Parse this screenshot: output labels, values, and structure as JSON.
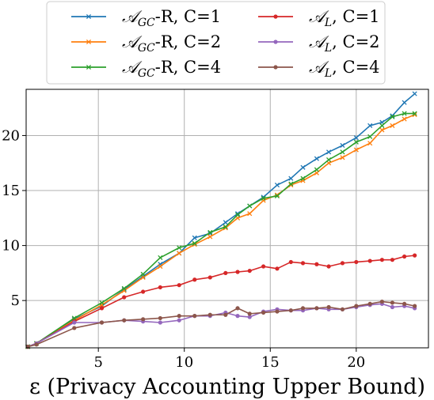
{
  "chart_data": {
    "type": "line",
    "title": "",
    "xlabel": "ε (Privacy Accounting Upper Bound)",
    "ylabel": "",
    "xlim": [
      0.8,
      24.2
    ],
    "ylim": [
      0.7,
      24.2
    ],
    "xticks": [
      5,
      10,
      15,
      20
    ],
    "yticks": [
      5,
      10,
      15,
      20
    ],
    "grid": true,
    "legend": {
      "placement": "top-outside",
      "columns": 2
    },
    "series": [
      {
        "name": "A_GC-R, C=1",
        "legend_main": "𝒜",
        "legend_sub": "GC",
        "legend_rest": "-R, C=1",
        "color": "#1f77b4",
        "marker": "x",
        "x": [
          0.9,
          1.4,
          3.6,
          5.2,
          6.5,
          7.6,
          8.6,
          9.7,
          10.6,
          11.5,
          12.4,
          13.1,
          13.8,
          14.6,
          15.4,
          16.2,
          16.9,
          17.7,
          18.4,
          19.2,
          20.0,
          20.8,
          21.5,
          22.1,
          22.8,
          23.4
        ],
        "y": [
          0.8,
          1.1,
          3.3,
          4.5,
          6.0,
          7.2,
          8.3,
          9.3,
          10.7,
          11.1,
          12.1,
          12.9,
          13.6,
          14.4,
          15.5,
          16.1,
          17.1,
          17.9,
          18.5,
          19.1,
          19.8,
          20.9,
          21.2,
          21.8,
          23.0,
          23.8
        ]
      },
      {
        "name": "A_GC-R, C=2",
        "legend_main": "𝒜",
        "legend_sub": "GC",
        "legend_rest": "-R, C=2",
        "color": "#ff7f0e",
        "marker": "x",
        "x": [
          0.9,
          1.4,
          3.6,
          5.2,
          6.5,
          7.6,
          8.6,
          9.7,
          10.6,
          11.5,
          12.4,
          13.1,
          13.8,
          14.6,
          15.4,
          16.2,
          16.9,
          17.7,
          18.4,
          19.2,
          20.0,
          20.8,
          21.5,
          22.1,
          22.8,
          23.4
        ],
        "y": [
          0.8,
          1.1,
          3.2,
          4.6,
          5.9,
          7.1,
          8.1,
          9.3,
          10.1,
          10.8,
          11.6,
          12.5,
          12.9,
          14.1,
          14.6,
          15.5,
          15.9,
          16.6,
          17.5,
          18.0,
          18.7,
          19.3,
          20.5,
          20.9,
          21.5,
          21.9
        ]
      },
      {
        "name": "A_GC-R, C=4",
        "legend_main": "𝒜",
        "legend_sub": "GC",
        "legend_rest": "-R, C=4",
        "color": "#2ca02c",
        "marker": "x",
        "x": [
          0.9,
          1.4,
          3.6,
          5.2,
          6.5,
          7.6,
          8.6,
          9.7,
          10.6,
          11.5,
          12.4,
          13.1,
          13.8,
          14.6,
          15.4,
          16.2,
          16.9,
          17.7,
          18.4,
          19.2,
          20.0,
          20.8,
          21.5,
          22.1,
          22.8,
          23.4
        ],
        "y": [
          0.8,
          1.1,
          3.4,
          4.8,
          6.1,
          7.4,
          8.9,
          9.8,
          10.2,
          11.2,
          11.7,
          12.8,
          13.6,
          14.3,
          14.5,
          15.6,
          16.1,
          16.9,
          17.8,
          18.5,
          19.4,
          19.9,
          20.9,
          21.7,
          22.0,
          22.0
        ]
      },
      {
        "name": "A_L, C=1",
        "legend_main": "𝒜",
        "legend_sub": "L",
        "legend_rest": ", C=1",
        "color": "#d62728",
        "marker": "o",
        "x": [
          0.9,
          1.4,
          3.6,
          5.2,
          6.5,
          7.6,
          8.6,
          9.7,
          10.6,
          11.5,
          12.4,
          13.1,
          13.8,
          14.6,
          15.4,
          16.2,
          16.9,
          17.7,
          18.4,
          19.2,
          20.0,
          20.8,
          21.5,
          22.1,
          22.8,
          23.4
        ],
        "y": [
          0.8,
          1.1,
          3.1,
          4.3,
          5.3,
          5.8,
          6.2,
          6.4,
          6.9,
          7.1,
          7.5,
          7.6,
          7.7,
          8.1,
          7.9,
          8.5,
          8.4,
          8.3,
          8.1,
          8.4,
          8.5,
          8.6,
          8.7,
          8.7,
          9.0,
          9.1
        ]
      },
      {
        "name": "A_L, C=2",
        "legend_main": "𝒜",
        "legend_sub": "L",
        "legend_rest": ", C=2",
        "color": "#9467bd",
        "marker": "o",
        "x": [
          0.9,
          1.4,
          3.6,
          5.2,
          6.5,
          7.6,
          8.6,
          9.7,
          10.6,
          11.5,
          12.4,
          13.1,
          13.8,
          14.6,
          15.4,
          16.2,
          16.9,
          17.7,
          18.4,
          19.2,
          20.0,
          20.8,
          21.5,
          22.1,
          22.8,
          23.4
        ],
        "y": [
          0.8,
          1.1,
          3.0,
          3.0,
          3.2,
          3.1,
          3.0,
          3.2,
          3.6,
          3.6,
          3.9,
          3.6,
          3.5,
          4.0,
          4.2,
          4.1,
          4.1,
          4.3,
          4.2,
          4.2,
          4.4,
          4.6,
          4.7,
          4.4,
          4.5,
          4.3
        ]
      },
      {
        "name": "A_L, C=4",
        "legend_main": "𝒜",
        "legend_sub": "L",
        "legend_rest": ", C=4",
        "color": "#8c564b",
        "marker": "o",
        "x": [
          0.9,
          1.4,
          3.6,
          5.2,
          6.5,
          7.6,
          8.6,
          9.7,
          10.6,
          11.5,
          12.4,
          13.1,
          13.8,
          14.6,
          15.4,
          16.2,
          16.9,
          17.7,
          18.4,
          19.2,
          20.0,
          20.8,
          21.5,
          22.1,
          22.8,
          23.4
        ],
        "y": [
          0.8,
          1.0,
          2.5,
          3.0,
          3.2,
          3.3,
          3.4,
          3.6,
          3.6,
          3.7,
          3.7,
          4.3,
          3.8,
          3.9,
          4.0,
          4.1,
          4.3,
          4.3,
          4.4,
          4.2,
          4.5,
          4.7,
          4.9,
          4.8,
          4.7,
          4.5
        ]
      }
    ]
  }
}
